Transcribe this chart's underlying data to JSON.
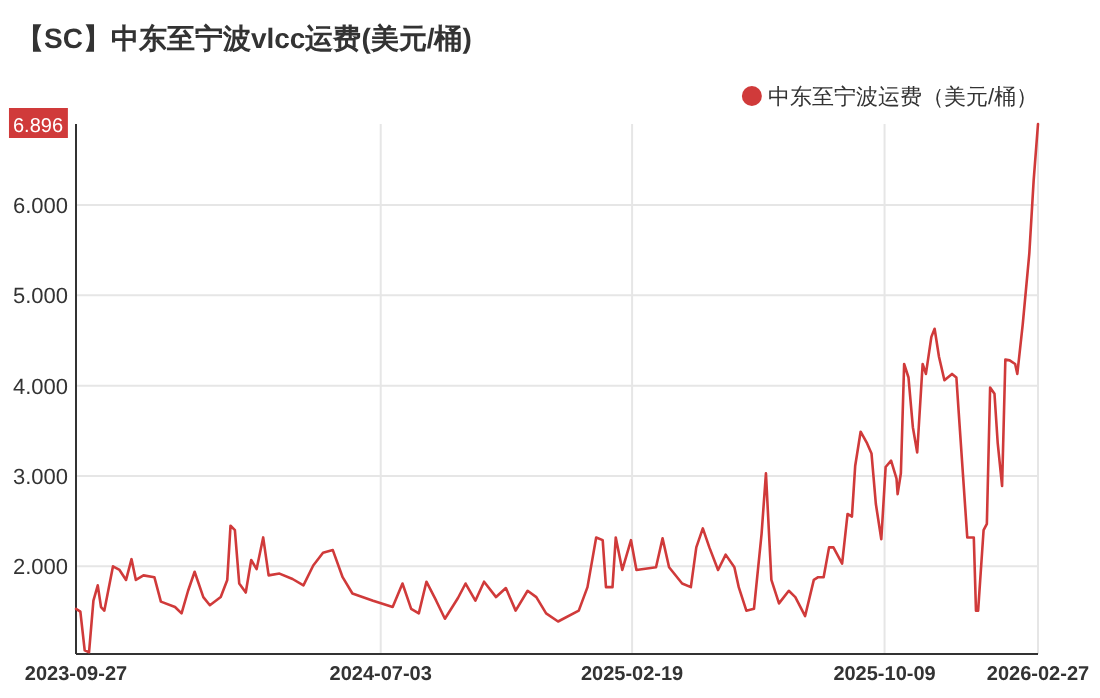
{
  "chart_data": {
    "type": "line",
    "title": "【SC】中东至宁波vlcc运费(美元/桶)",
    "legend": "top right",
    "grid": true,
    "x": [
      "2023-09-27",
      "2023-10-01",
      "2023-10-05",
      "2023-10-09",
      "2023-10-13",
      "2023-10-17",
      "2023-10-20",
      "2023-10-23",
      "2023-10-31",
      "2023-11-06",
      "2023-11-12",
      "2023-11-17",
      "2023-11-21",
      "2023-11-28",
      "2023-12-08",
      "2023-12-14",
      "2023-12-27",
      "2024-01-02",
      "2024-01-08",
      "2024-01-14",
      "2024-01-22",
      "2024-01-28",
      "2024-02-07",
      "2024-02-13",
      "2024-02-16",
      "2024-02-20",
      "2024-02-24",
      "2024-03-01",
      "2024-03-06",
      "2024-03-11",
      "2024-03-17",
      "2024-03-22",
      "2024-04-01",
      "2024-04-13",
      "2024-04-23",
      "2024-05-02",
      "2024-05-11",
      "2024-05-20",
      "2024-05-29",
      "2024-06-07",
      "2024-06-26",
      "2024-07-14",
      "2024-07-23",
      "2024-07-31",
      "2024-08-07",
      "2024-08-14",
      "2024-08-23",
      "2024-08-31",
      "2024-09-12",
      "2024-09-19",
      "2024-09-28",
      "2024-10-06",
      "2024-10-17",
      "2024-10-26",
      "2024-11-04",
      "2024-11-15",
      "2024-11-23",
      "2024-12-02",
      "2024-12-13",
      "2025-01-01",
      "2025-01-09",
      "2025-01-17",
      "2025-01-23",
      "2025-01-26",
      "2025-02-01",
      "2025-02-04",
      "2025-02-10",
      "2025-02-18",
      "2025-02-23",
      "2025-03-13",
      "2025-03-19",
      "2025-03-25",
      "2025-04-06",
      "2025-04-14",
      "2025-04-19",
      "2025-04-25",
      "2025-05-01",
      "2025-05-09",
      "2025-05-16",
      "2025-05-24",
      "2025-05-28",
      "2025-06-04",
      "2025-06-11",
      "2025-06-18",
      "2025-06-22",
      "2025-06-27",
      "2025-07-04",
      "2025-07-13",
      "2025-07-19",
      "2025-07-28",
      "2025-08-05",
      "2025-08-09",
      "2025-08-14",
      "2025-08-19",
      "2025-08-23",
      "2025-08-31",
      "2025-09-05",
      "2025-09-09",
      "2025-09-12",
      "2025-09-17",
      "2025-09-23",
      "2025-09-27",
      "2025-10-01",
      "2025-10-06",
      "2025-10-10",
      "2025-10-15",
      "2025-10-20",
      "2025-10-21",
      "2025-10-24",
      "2025-10-27",
      "2025-10-31",
      "2025-11-04",
      "2025-11-08",
      "2025-11-13",
      "2025-11-16",
      "2025-11-21",
      "2025-11-24",
      "2025-11-28",
      "2025-12-03",
      "2025-12-10",
      "2025-12-14",
      "2025-12-16",
      "2025-12-24",
      "2025-12-30",
      "2026-01-01",
      "2026-01-03",
      "2026-01-08",
      "2026-01-11",
      "2026-01-14",
      "2026-01-18",
      "2026-01-21",
      "2026-01-25",
      "2026-01-28",
      "2026-02-01",
      "2026-02-06",
      "2026-02-08",
      "2026-02-13",
      "2026-02-19",
      "2026-02-23",
      "2026-02-27"
    ],
    "series": [
      {
        "name": "中东至宁波运费（美元/桶）",
        "color": "#d03a3a",
        "values": [
          1.53,
          1.5,
          1.07,
          1.05,
          1.62,
          1.79,
          1.55,
          1.51,
          2.0,
          1.96,
          1.85,
          2.08,
          1.85,
          1.9,
          1.88,
          1.61,
          1.55,
          1.48,
          1.73,
          1.94,
          1.66,
          1.57,
          1.66,
          1.85,
          2.45,
          2.4,
          1.81,
          1.71,
          2.07,
          1.97,
          2.32,
          1.9,
          1.92,
          1.86,
          1.79,
          2.01,
          2.15,
          2.18,
          1.88,
          1.7,
          1.62,
          1.55,
          1.81,
          1.53,
          1.48,
          1.83,
          1.62,
          1.42,
          1.65,
          1.81,
          1.62,
          1.83,
          1.66,
          1.76,
          1.51,
          1.73,
          1.66,
          1.48,
          1.39,
          1.51,
          1.77,
          2.32,
          2.29,
          1.77,
          1.77,
          2.32,
          1.96,
          2.29,
          1.96,
          1.99,
          2.31,
          1.99,
          1.81,
          1.77,
          2.21,
          2.42,
          2.21,
          1.96,
          2.13,
          1.99,
          1.77,
          1.51,
          1.53,
          2.36,
          3.03,
          1.85,
          1.59,
          1.73,
          1.66,
          1.45,
          1.85,
          1.88,
          1.88,
          2.21,
          2.21,
          2.03,
          2.58,
          2.55,
          3.11,
          3.49,
          3.36,
          3.25,
          2.69,
          2.3,
          3.1,
          3.17,
          2.97,
          2.8,
          3.03,
          4.24,
          4.09,
          3.54,
          3.26,
          4.24,
          4.13,
          4.54,
          4.63,
          4.32,
          4.06,
          4.13,
          4.09,
          3.73,
          2.32,
          2.32,
          1.51,
          1.51,
          2.4,
          2.47,
          3.98,
          3.91,
          3.36,
          2.89,
          4.29,
          4.28,
          4.24,
          4.13,
          4.68,
          5.46,
          6.27,
          6.896
        ]
      }
    ],
    "xlim": [
      "2023-09-27",
      "2026-02-27"
    ],
    "xticks": [
      "2023-09-27",
      "2024-07-03",
      "2025-02-19",
      "2025-10-09",
      "2026-02-27"
    ],
    "ylim": [
      1.03,
      6.896
    ],
    "yticks": [
      {
        "value": 2,
        "label": "2.000"
      },
      {
        "value": 3,
        "label": "3.000"
      },
      {
        "value": 4,
        "label": "4.000"
      },
      {
        "value": 5,
        "label": "5.000"
      },
      {
        "value": 6,
        "label": "6.000"
      }
    ],
    "annotations": [
      "6.896"
    ]
  }
}
